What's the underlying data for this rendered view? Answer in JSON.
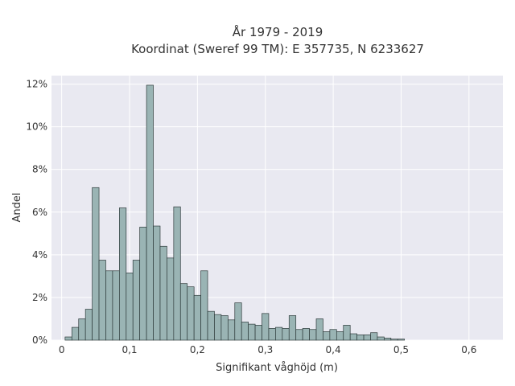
{
  "chart_data": {
    "type": "bar",
    "title": "År 1979 - 2019",
    "subtitle": "Koordinat (Sweref 99 TM): E 357735, N 6233627",
    "xlabel": "Signifikant våghöjd (m)",
    "ylabel": "Andel",
    "bin_width": 0.01,
    "bin_start": 0.005,
    "xlim": [
      -0.015,
      0.65
    ],
    "ylim": [
      0,
      12.4
    ],
    "x_ticks": [
      0,
      0.1,
      0.2,
      0.3,
      0.4,
      0.5,
      0.6
    ],
    "x_tick_labels": [
      "0",
      "0,1",
      "0,2",
      "0,3",
      "0,4",
      "0,5",
      "0,6"
    ],
    "y_ticks": [
      0,
      2,
      4,
      6,
      8,
      10,
      12
    ],
    "y_tick_labels": [
      "0%",
      "2%",
      "4%",
      "6%",
      "8%",
      "10%",
      "12%"
    ],
    "grid": true,
    "values": [
      0.15,
      0.6,
      1.0,
      1.45,
      7.15,
      3.75,
      3.25,
      3.25,
      6.2,
      3.15,
      3.75,
      5.3,
      11.95,
      5.35,
      4.4,
      3.85,
      6.25,
      2.65,
      2.5,
      2.1,
      3.25,
      1.35,
      1.2,
      1.15,
      0.95,
      1.75,
      0.85,
      0.75,
      0.7,
      1.25,
      0.55,
      0.6,
      0.55,
      1.15,
      0.5,
      0.55,
      0.5,
      1.0,
      0.4,
      0.5,
      0.4,
      0.7,
      0.3,
      0.25,
      0.25,
      0.35,
      0.15,
      0.1,
      0.05,
      0.05
    ]
  },
  "colors": {
    "plot_bg": "#e9e9f1",
    "grid": "#ffffff",
    "bar_fill": "#9ab4b4",
    "bar_stroke": "#2e3b3b"
  }
}
